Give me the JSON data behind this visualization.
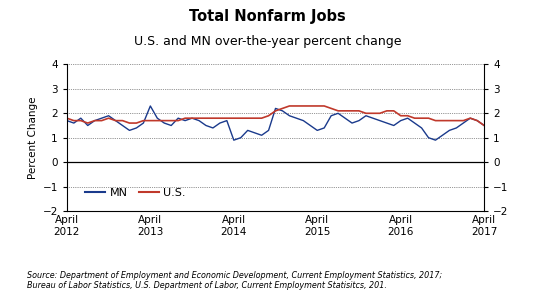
{
  "title1": "Total Nonfarm Jobs",
  "title2": "U.S. and MN over-the-year percent change",
  "ylabel": "Percent Change",
  "ylim": [
    -2,
    4
  ],
  "yticks": [
    -2,
    -1,
    0,
    1,
    2,
    3,
    4
  ],
  "source": "Source: Department of Employment and Economic Development, Current Employment Statistics, 2017;\nBureau of Labor Statistics, U.S. Department of Labor, Current Employment Statisitcs, 201.",
  "mn_color": "#1a3a8c",
  "us_color": "#c0392b",
  "mn_label": "MN",
  "us_label": "U.S.",
  "x_tick_labels": [
    "April\n2012",
    "April\n2013",
    "April\n2014",
    "April\n2015",
    "April\n2016",
    "April\n2017"
  ],
  "tick_positions": [
    0,
    12,
    24,
    36,
    48,
    60
  ],
  "mn_data": [
    1.7,
    1.6,
    1.8,
    1.5,
    1.7,
    1.8,
    1.9,
    1.7,
    1.5,
    1.3,
    1.4,
    1.6,
    2.3,
    1.8,
    1.6,
    1.5,
    1.8,
    1.7,
    1.8,
    1.7,
    1.5,
    1.4,
    1.6,
    1.7,
    0.9,
    1.0,
    1.3,
    1.2,
    1.1,
    1.3,
    2.2,
    2.1,
    1.9,
    1.8,
    1.7,
    1.5,
    1.3,
    1.4,
    1.9,
    2.0,
    1.8,
    1.6,
    1.7,
    1.9,
    1.8,
    1.7,
    1.6,
    1.5,
    1.7,
    1.8,
    1.6,
    1.4,
    1.0,
    0.9,
    1.1,
    1.3,
    1.4,
    1.6,
    1.8,
    1.7,
    1.5
  ],
  "us_data": [
    1.8,
    1.7,
    1.7,
    1.6,
    1.7,
    1.7,
    1.8,
    1.7,
    1.7,
    1.6,
    1.6,
    1.7,
    1.7,
    1.7,
    1.7,
    1.7,
    1.7,
    1.8,
    1.8,
    1.8,
    1.8,
    1.8,
    1.8,
    1.8,
    1.8,
    1.8,
    1.8,
    1.8,
    1.8,
    1.9,
    2.1,
    2.2,
    2.3,
    2.3,
    2.3,
    2.3,
    2.3,
    2.3,
    2.2,
    2.1,
    2.1,
    2.1,
    2.1,
    2.0,
    2.0,
    2.0,
    2.1,
    2.1,
    1.9,
    1.9,
    1.8,
    1.8,
    1.8,
    1.7,
    1.7,
    1.7,
    1.7,
    1.7,
    1.8,
    1.7,
    1.5
  ]
}
